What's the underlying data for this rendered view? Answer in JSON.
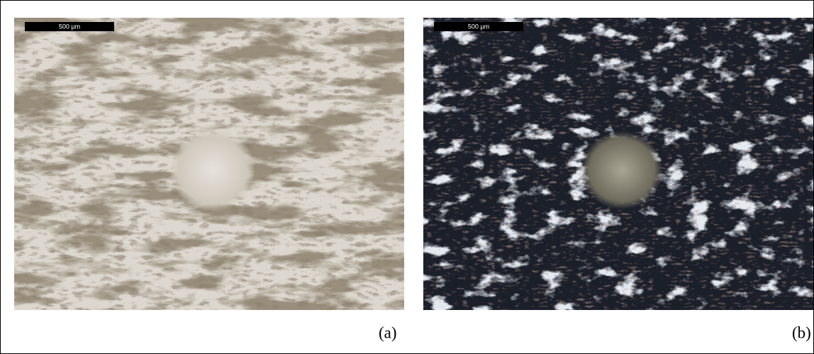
{
  "panels": [
    {
      "scale_bar": "500 µm",
      "label": "(a)"
    },
    {
      "scale_bar": "500 µm",
      "label": "(b)"
    }
  ]
}
